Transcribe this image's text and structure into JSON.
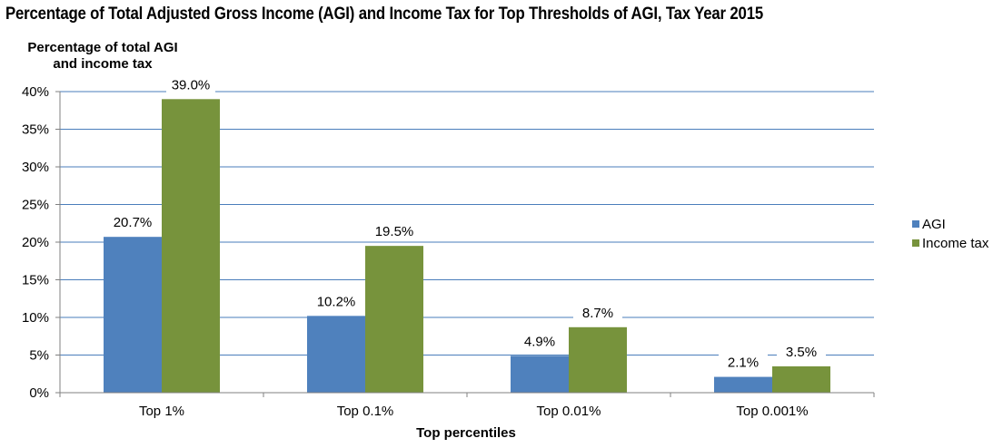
{
  "chart_data": {
    "type": "bar",
    "title": "Percentage of Total Adjusted Gross Income (AGI) and Income Tax for Top Thresholds of AGI, Tax Year 2015",
    "ylabel_lines": [
      "Percentage of total AGI",
      "and income tax"
    ],
    "xlabel": "Top percentiles",
    "categories": [
      "Top 1%",
      "Top 0.1%",
      "Top 0.01%",
      "Top 0.001%"
    ],
    "series": [
      {
        "name": "AGI",
        "color": "#4f81bd",
        "values": [
          20.7,
          10.2,
          4.9,
          2.1
        ],
        "labels": [
          "20.7%",
          "10.2%",
          "4.9%",
          "2.1%"
        ]
      },
      {
        "name": "Income tax",
        "color": "#77933c",
        "values": [
          39.0,
          19.5,
          8.7,
          3.5
        ],
        "labels": [
          "39.0%",
          "19.5%",
          "8.7%",
          "3.5%"
        ]
      }
    ],
    "ylim": [
      0,
      40
    ],
    "yticks": [
      0,
      5,
      10,
      15,
      20,
      25,
      30,
      35,
      40
    ],
    "ytick_labels": [
      "0%",
      "5%",
      "10%",
      "15%",
      "20%",
      "25%",
      "30%",
      "35%",
      "40%"
    ],
    "grid": true,
    "gridline_color": "#4a7ebb",
    "legend_position": "right"
  }
}
